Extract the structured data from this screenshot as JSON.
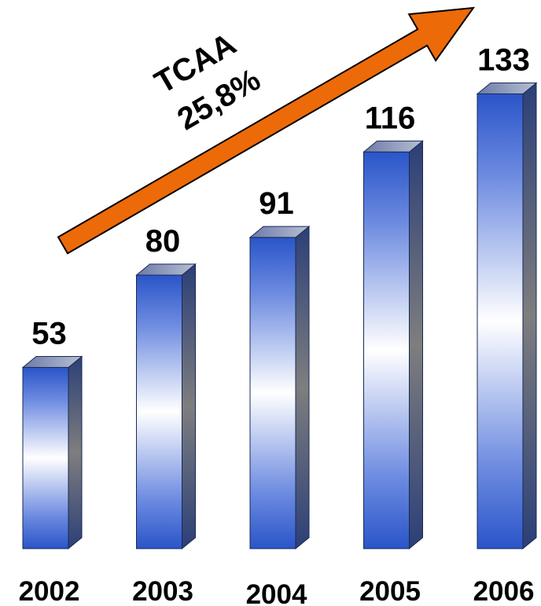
{
  "chart_data": {
    "type": "bar",
    "categories": [
      "2002",
      "2003",
      "2004",
      "2005",
      "2006"
    ],
    "values": [
      53,
      80,
      91,
      116,
      133
    ],
    "title": "",
    "xlabel": "",
    "ylabel": "",
    "data_labels": [
      "53",
      "80",
      "91",
      "116",
      "133"
    ],
    "annotation": {
      "line1": "TCAA",
      "line2": "25,8%"
    },
    "colors": {
      "bar_gradient_edge": "#2a55c9",
      "bar_gradient_center": "#ffffff",
      "bar_side": "#5f6f86",
      "bar_top": "#8a93ab",
      "arrow_fill": "#ed6a08",
      "arrow_stroke": "#000000"
    }
  }
}
